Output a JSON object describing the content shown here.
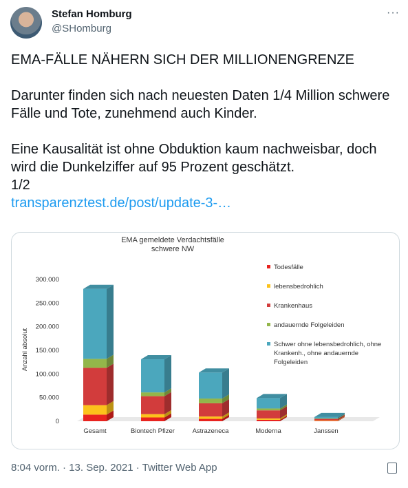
{
  "tweet": {
    "name": "Stefan Homburg",
    "handle": "@SHomburg",
    "paragraphs": [
      "EMA-FÄLLE NÄHERN SICH DER MILLIONENGRENZE",
      "Darunter finden sich nach neuesten Daten 1/4 Million schwere Fälle und Tote, zunehmend auch Kinder.",
      "Eine Kausalität ist ohne Obduktion kaum nachweisbar, doch wird die Dunkelziffer auf 95 Prozent geschätzt."
    ],
    "thread_marker": "1/2",
    "link": "transparenztest.de/post/update-3-…",
    "footer": "8:04 vorm. · 13. Sep. 2021 · Twitter Web App"
  },
  "chart_data": {
    "type": "bar",
    "stacked": true,
    "title": "EMA gemeldete Verdachtsfälle",
    "subtitle": "schwere NW",
    "y_label": "Anzahl absolut",
    "categories": [
      "Gesamt",
      "Biontech Pfizer",
      "Astrazeneca",
      "Moderna",
      "Janssen"
    ],
    "series": [
      {
        "name": "Todesfälle",
        "color": "#e8231f",
        "values": [
          14000,
          8000,
          5000,
          3000,
          1000
        ]
      },
      {
        "name": "lebensbedrohlich",
        "color": "#fcc21b",
        "values": [
          20000,
          7000,
          5000,
          3000,
          1000
        ]
      },
      {
        "name": "Krankenhaus",
        "color": "#d23c3c",
        "values": [
          79000,
          38000,
          28000,
          17000,
          3000
        ]
      },
      {
        "name": "andauernde Folgeleiden",
        "color": "#93b64a",
        "values": [
          19000,
          8000,
          10000,
          4000,
          1000
        ]
      },
      {
        "name": "Schwer ohne lebensbedrohlich, ohne Krankenh., ohne andauernde Folgeleiden",
        "color": "#4ba7bd",
        "values": [
          148000,
          70000,
          55000,
          22000,
          3000
        ]
      }
    ],
    "ylim": [
      0,
      300000
    ],
    "yticks": [
      {
        "value": 0,
        "label": "0"
      },
      {
        "value": 50000,
        "label": "50.000"
      },
      {
        "value": 100000,
        "label": "100.000"
      },
      {
        "value": 150000,
        "label": "150.000"
      },
      {
        "value": 200000,
        "label": "200.000"
      },
      {
        "value": 250000,
        "label": "250.000"
      },
      {
        "value": 300000,
        "label": "300.000"
      }
    ],
    "grid": false
  }
}
